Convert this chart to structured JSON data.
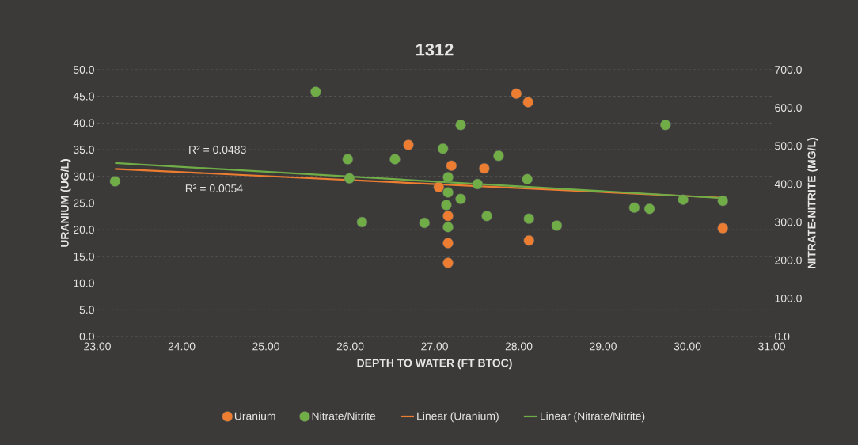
{
  "chart_data": {
    "type": "scatter",
    "title": "1312",
    "xlabel": "DEPTH TO WATER (FT BTOC)",
    "ylabel": "URANIUM (UG/L)",
    "y2label": "NITRATE-NITRITE (MG/L)",
    "xlim": [
      23,
      31
    ],
    "xticks": [
      {
        "value": 23,
        "label": "23.00"
      },
      {
        "value": 24,
        "label": "24.00"
      },
      {
        "value": 25,
        "label": "25.00"
      },
      {
        "value": 26,
        "label": "26.00"
      },
      {
        "value": 27,
        "label": "27.00"
      },
      {
        "value": 28,
        "label": "28.00"
      },
      {
        "value": 29,
        "label": "29.00"
      },
      {
        "value": 30,
        "label": "30.00"
      },
      {
        "value": 31,
        "label": "31.00"
      }
    ],
    "ylim": [
      0,
      50
    ],
    "yticks": [
      {
        "value": 0,
        "label": "0.0"
      },
      {
        "value": 5,
        "label": "5.0"
      },
      {
        "value": 10,
        "label": "10.0"
      },
      {
        "value": 15,
        "label": "15.0"
      },
      {
        "value": 20,
        "label": "20.0"
      },
      {
        "value": 25,
        "label": "25.0"
      },
      {
        "value": 30,
        "label": "30.0"
      },
      {
        "value": 35,
        "label": "35.0"
      },
      {
        "value": 40,
        "label": "40.0"
      },
      {
        "value": 45,
        "label": "45.0"
      },
      {
        "value": 50,
        "label": "50.0"
      }
    ],
    "y2lim": [
      0,
      700
    ],
    "y2ticks": [
      {
        "value": 0,
        "label": "0.0"
      },
      {
        "value": 100,
        "label": "100.0"
      },
      {
        "value": 200,
        "label": "200.0"
      },
      {
        "value": 300,
        "label": "300.0"
      },
      {
        "value": 400,
        "label": "400.0"
      },
      {
        "value": 500,
        "label": "500.0"
      },
      {
        "value": 600,
        "label": "600.0"
      },
      {
        "value": 700,
        "label": "700.0"
      }
    ],
    "grid": "y",
    "legend": "bottom",
    "annotations": [
      "R² = 0.0483",
      "R² = 0.0054"
    ],
    "series": [
      {
        "name": "Uranium",
        "marker": "circle",
        "color": "#ed7d31",
        "x": [
          26.69,
          27.97,
          28.11,
          27.2,
          27.59,
          27.05,
          27.16,
          27.16,
          27.16,
          28.12,
          30.42
        ],
        "values": [
          35.9,
          45.5,
          43.9,
          32.0,
          31.5,
          28.0,
          22.6,
          17.5,
          13.8,
          18.0,
          20.3
        ]
      },
      {
        "name": "Nitrate/Nitrite",
        "marker": "circle",
        "axis": "y2",
        "color": "#70ad47",
        "x": [
          23.21,
          25.59,
          25.97,
          25.99,
          26.14,
          26.53,
          26.88,
          27.1,
          27.31,
          27.76,
          27.16,
          27.16,
          27.14,
          27.16,
          27.31,
          27.51,
          27.62,
          28.1,
          28.12,
          28.45,
          29.74,
          29.37,
          29.55,
          29.95,
          30.42
        ],
        "values": [
          407,
          642,
          465,
          415,
          300,
          465,
          298,
          493,
          555,
          474,
          418,
          378,
          345,
          287,
          361,
          400,
          316,
          413,
          309,
          291,
          555,
          338,
          335,
          359,
          356
        ]
      },
      {
        "name": "Linear (Uranium)",
        "type": "line",
        "marker": "none",
        "color": "#ed7d31",
        "x": [
          23.21,
          30.42
        ],
        "values": [
          31.4,
          26.0
        ]
      },
      {
        "name": "Linear (Nitrate/Nitrite)",
        "type": "line",
        "marker": "none",
        "axis": "y2",
        "color": "#70ad47",
        "x": [
          23.21,
          30.42
        ],
        "values": [
          455,
          363
        ]
      }
    ]
  }
}
